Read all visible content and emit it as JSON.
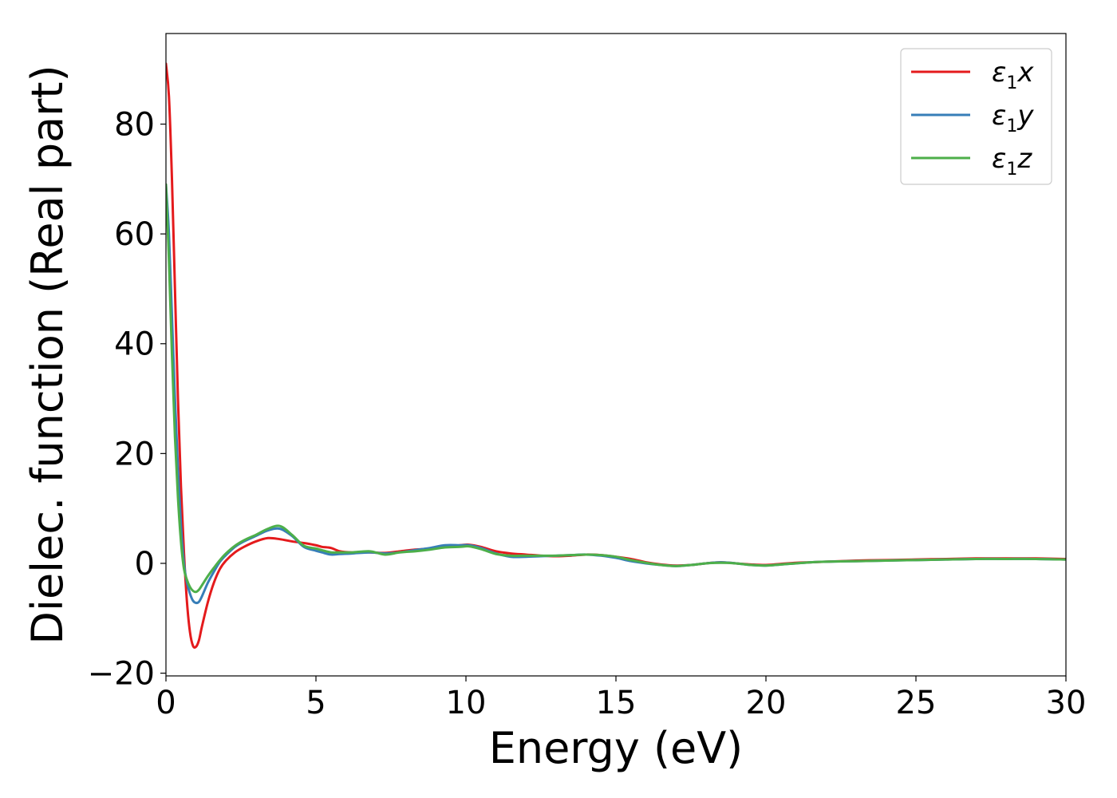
{
  "chart_data": {
    "type": "line",
    "title": "",
    "xlabel": "Energy (eV)",
    "ylabel": "Dielec. function (Real part)",
    "xlim": [
      0,
      30
    ],
    "ylim": [
      -20.5,
      96.5
    ],
    "xticks": [
      0,
      5,
      10,
      15,
      20,
      25,
      30
    ],
    "yticks": [
      -20,
      0,
      20,
      40,
      60,
      80
    ],
    "xtick_labels": [
      "0",
      "5",
      "10",
      "15",
      "20",
      "25",
      "30"
    ],
    "ytick_labels": [
      "−20",
      "0",
      "20",
      "40",
      "60",
      "80"
    ],
    "grid": false,
    "legend_position": "top-right",
    "series": [
      {
        "name": "x",
        "legend_symbol": "ε",
        "legend_subscript": "1",
        "color": "#e41a1c",
        "x": [
          0,
          0.1,
          0.2,
          0.3,
          0.4,
          0.5,
          0.6,
          0.7,
          0.8,
          0.9,
          1.0,
          1.1,
          1.2,
          1.4,
          1.6,
          1.8,
          2.0,
          2.3,
          2.6,
          3.0,
          3.4,
          3.8,
          4.2,
          4.6,
          5.0,
          5.2,
          5.5,
          5.8,
          6.2,
          6.8,
          7.3,
          7.8,
          8.3,
          8.8,
          9.3,
          9.8,
          10.1,
          10.5,
          11.0,
          11.5,
          12.0,
          12.5,
          13.0,
          13.5,
          14.0,
          14.5,
          15.0,
          15.5,
          16.0,
          16.5,
          17.0,
          17.5,
          18.0,
          18.5,
          19.0,
          19.5,
          20.0,
          20.5,
          21.0,
          21.5,
          22.0,
          23.0,
          24.0,
          25.0,
          26.0,
          27.0,
          28.0,
          29.0,
          30.0
        ],
        "y": [
          91.0,
          85.0,
          70.0,
          50.0,
          30.0,
          14.0,
          2.0,
          -7.0,
          -12.5,
          -15.0,
          -15.2,
          -14.0,
          -11.5,
          -7.0,
          -3.5,
          -1.0,
          0.5,
          2.0,
          3.0,
          4.0,
          4.6,
          4.4,
          4.0,
          3.7,
          3.3,
          3.0,
          2.8,
          2.2,
          2.0,
          2.0,
          1.9,
          2.2,
          2.5,
          2.7,
          3.0,
          3.3,
          3.4,
          3.0,
          2.2,
          1.8,
          1.6,
          1.4,
          1.3,
          1.4,
          1.6,
          1.5,
          1.2,
          0.8,
          0.2,
          -0.2,
          -0.4,
          -0.3,
          0.0,
          0.2,
          0.0,
          -0.2,
          -0.3,
          -0.1,
          0.1,
          0.2,
          0.3,
          0.5,
          0.6,
          0.7,
          0.8,
          0.9,
          0.9,
          0.9,
          0.8
        ]
      },
      {
        "name": "y",
        "legend_symbol": "ε",
        "legend_subscript": "1",
        "color": "#377eb8",
        "x": [
          0,
          0.1,
          0.2,
          0.3,
          0.4,
          0.5,
          0.6,
          0.7,
          0.8,
          0.9,
          1.0,
          1.1,
          1.2,
          1.4,
          1.6,
          1.8,
          2.0,
          2.3,
          2.6,
          3.0,
          3.4,
          3.8,
          4.2,
          4.6,
          5.0,
          5.2,
          5.5,
          5.8,
          6.2,
          6.8,
          7.3,
          7.8,
          8.3,
          8.8,
          9.3,
          9.8,
          10.1,
          10.5,
          11.0,
          11.5,
          12.0,
          12.5,
          13.0,
          13.5,
          14.0,
          14.5,
          15.0,
          15.5,
          16.0,
          16.5,
          17.0,
          17.5,
          18.0,
          18.5,
          19.0,
          19.5,
          20.0,
          20.5,
          21.0,
          21.5,
          22.0,
          23.0,
          24.0,
          25.0,
          26.0,
          27.0,
          28.0,
          29.0,
          30.0
        ],
        "y": [
          69.0,
          60.0,
          45.0,
          30.0,
          17.0,
          7.0,
          0.0,
          -3.5,
          -5.5,
          -6.8,
          -7.2,
          -7.0,
          -6.0,
          -3.5,
          -1.5,
          0.3,
          1.5,
          3.0,
          4.0,
          5.0,
          6.0,
          6.3,
          5.0,
          3.0,
          2.3,
          2.0,
          1.6,
          1.7,
          1.8,
          2.0,
          1.8,
          2.0,
          2.4,
          2.8,
          3.3,
          3.3,
          3.3,
          2.8,
          1.8,
          1.2,
          1.2,
          1.3,
          1.4,
          1.5,
          1.6,
          1.4,
          1.0,
          0.4,
          0.0,
          -0.3,
          -0.5,
          -0.3,
          0.0,
          0.2,
          0.0,
          -0.3,
          -0.4,
          -0.2,
          0.0,
          0.2,
          0.3,
          0.4,
          0.5,
          0.6,
          0.7,
          0.8,
          0.8,
          0.8,
          0.7
        ]
      },
      {
        "name": "z",
        "legend_symbol": "ε",
        "legend_subscript": "1",
        "color": "#4daf4a",
        "x": [
          0,
          0.1,
          0.2,
          0.3,
          0.4,
          0.5,
          0.6,
          0.7,
          0.8,
          0.9,
          1.0,
          1.1,
          1.2,
          1.4,
          1.6,
          1.8,
          2.0,
          2.3,
          2.6,
          3.0,
          3.4,
          3.8,
          4.2,
          4.6,
          5.0,
          5.2,
          5.5,
          5.8,
          6.2,
          6.8,
          7.3,
          7.8,
          8.3,
          8.8,
          9.3,
          9.8,
          10.1,
          10.5,
          11.0,
          11.5,
          12.0,
          12.5,
          13.0,
          13.5,
          14.0,
          14.5,
          15.0,
          15.5,
          16.0,
          16.5,
          17.0,
          17.5,
          18.0,
          18.5,
          19.0,
          19.5,
          20.0,
          20.5,
          21.0,
          21.5,
          22.0,
          23.0,
          24.0,
          25.0,
          26.0,
          27.0,
          28.0,
          29.0,
          30.0
        ],
        "y": [
          69.0,
          55.0,
          38.0,
          23.0,
          12.0,
          4.0,
          -1.0,
          -3.0,
          -4.3,
          -5.0,
          -5.2,
          -4.8,
          -4.0,
          -2.3,
          -0.8,
          0.6,
          1.8,
          3.2,
          4.2,
          5.2,
          6.3,
          6.8,
          5.2,
          3.2,
          2.7,
          2.4,
          2.0,
          2.0,
          2.0,
          2.2,
          1.6,
          2.0,
          2.2,
          2.5,
          2.9,
          3.0,
          3.1,
          2.6,
          1.7,
          1.4,
          1.4,
          1.4,
          1.4,
          1.5,
          1.6,
          1.5,
          1.2,
          0.6,
          0.1,
          -0.3,
          -0.5,
          -0.3,
          0.0,
          0.1,
          0.0,
          -0.3,
          -0.4,
          -0.2,
          0.0,
          0.2,
          0.3,
          0.4,
          0.5,
          0.6,
          0.7,
          0.8,
          0.8,
          0.8,
          0.7
        ]
      }
    ]
  }
}
